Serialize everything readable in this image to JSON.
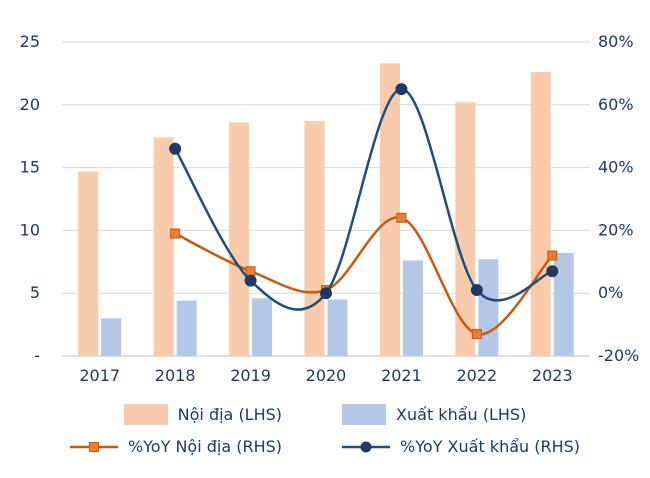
{
  "chart_data": {
    "type": "combo_bar_line",
    "categories": [
      "2017",
      "2018",
      "2019",
      "2020",
      "2021",
      "2022",
      "2023"
    ],
    "bar_series": [
      {
        "name": "Nội địa (LHS)",
        "axis": "left",
        "color": "#F8CBAD",
        "values": [
          14.7,
          17.4,
          18.6,
          18.7,
          23.3,
          20.2,
          22.6
        ]
      },
      {
        "name": "Xuất khẩu (LHS)",
        "axis": "left",
        "color": "#B4C7E7",
        "values": [
          3.0,
          4.4,
          4.6,
          4.5,
          7.6,
          7.7,
          8.2
        ]
      }
    ],
    "line_series": [
      {
        "name": "%YoY Nội địa (RHS)",
        "axis": "right",
        "color": "#C55A11",
        "marker": "square",
        "marker_fill": "#ED7D31",
        "values": [
          null,
          19,
          7,
          1,
          24,
          -13,
          12
        ]
      },
      {
        "name": "%YoY Xuất khẩu (RHS)",
        "axis": "right",
        "color": "#1F4E79",
        "marker": "circle",
        "marker_fill": "#1F3864",
        "values": [
          null,
          46,
          4,
          0,
          65,
          1,
          7
        ]
      }
    ],
    "left_axis": {
      "min": 0,
      "max": 25,
      "ticks": [
        0,
        5,
        10,
        15,
        20,
        25
      ],
      "tick_labels": [
        "-",
        "5",
        "10",
        "15",
        "20",
        "25"
      ]
    },
    "right_axis": {
      "min": -20,
      "max": 80,
      "ticks": [
        -20,
        0,
        20,
        40,
        60,
        80
      ],
      "tick_labels": [
        "-20%",
        "0%",
        "20%",
        "40%",
        "60%",
        "80%"
      ]
    },
    "grid": {
      "show": true,
      "color": "#D9D9D9",
      "baseline_color": "#BFBFBF"
    },
    "text_color": "#1F3864",
    "legend_position": "bottom",
    "smooth_lines": true
  }
}
